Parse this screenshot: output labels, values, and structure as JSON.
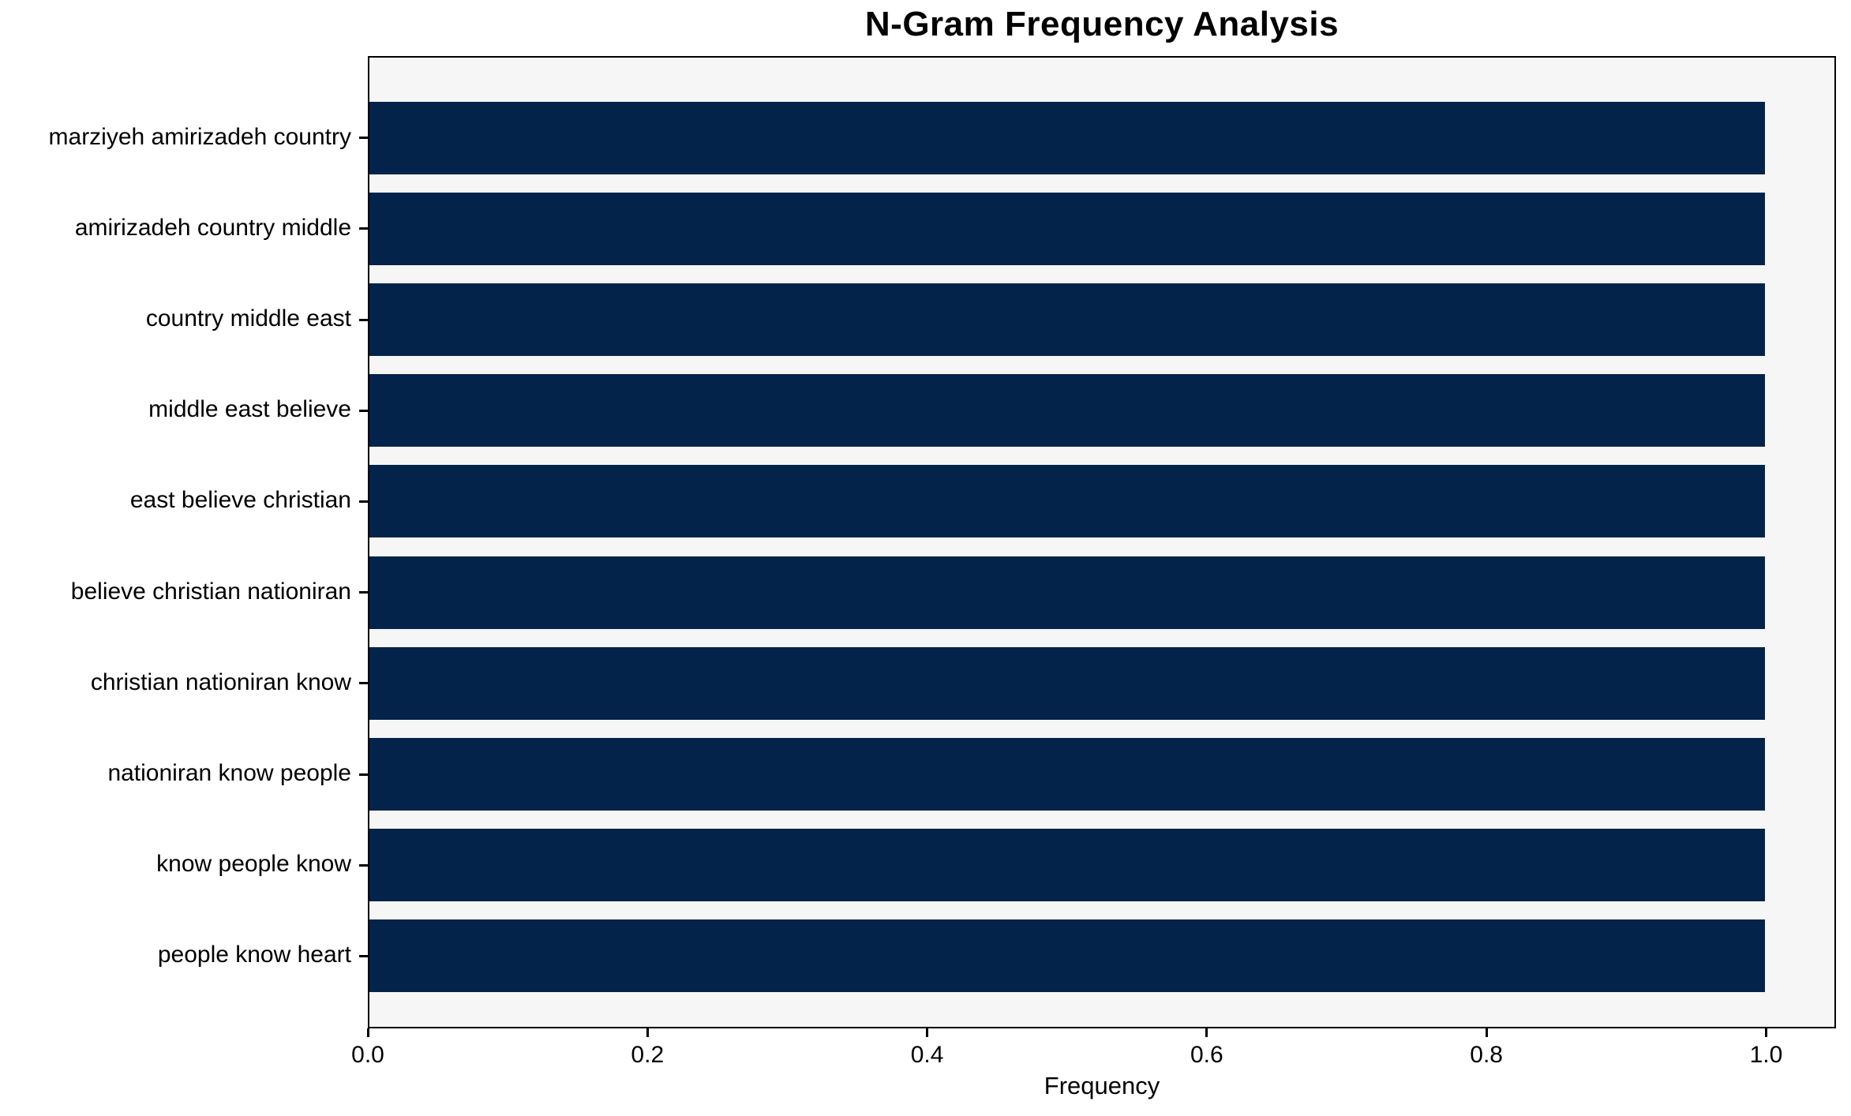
{
  "chart_data": {
    "type": "bar",
    "orientation": "horizontal",
    "title": "N-Gram Frequency Analysis",
    "xlabel": "Frequency",
    "categories": [
      "marziyeh amirizadeh country",
      "amirizadeh country middle",
      "country middle east",
      "middle east believe",
      "east believe christian",
      "believe christian nationiran",
      "christian nationiran know",
      "nationiran know people",
      "know people know",
      "people know heart"
    ],
    "values": [
      1.0,
      1.0,
      1.0,
      1.0,
      1.0,
      1.0,
      1.0,
      1.0,
      1.0,
      1.0
    ],
    "xlim": [
      0,
      1.05
    ],
    "xticks": [
      {
        "value": 0.0,
        "label": "0.0"
      },
      {
        "value": 0.2,
        "label": "0.2"
      },
      {
        "value": 0.4,
        "label": "0.4"
      },
      {
        "value": 0.6,
        "label": "0.6"
      },
      {
        "value": 0.8,
        "label": "0.8"
      },
      {
        "value": 1.0,
        "label": "1.0"
      }
    ],
    "grid": false,
    "legend": "none",
    "colors": {
      "bar": "#04234b",
      "plot_background": "#f6f6f6",
      "figure_background": "#ffffff",
      "spine": "#000000",
      "text": "#000000"
    }
  }
}
